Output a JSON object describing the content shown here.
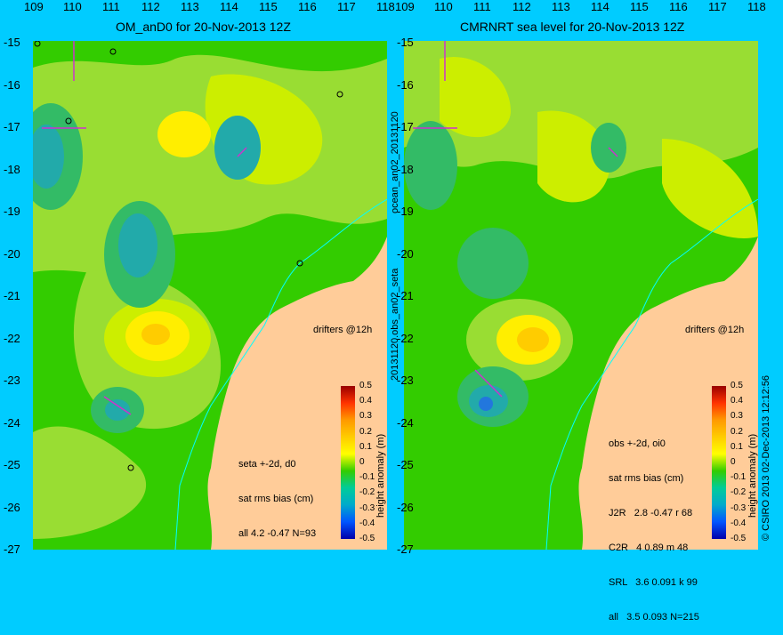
{
  "left_panel": {
    "title": "OM_anD0 for 20-Nov-2013 12Z",
    "drifters_label": "drifters @12h",
    "stats": [
      "seta +-2d, d0",
      "sat rms bias (cm)",
      "all 4.2 -0.47 N=93"
    ],
    "colorbar_label": "height anomaly (m)",
    "side_label": "ocean_an02_20131120"
  },
  "right_panel": {
    "title": "CMRNRT sea level  for 20-Nov-2013 12Z",
    "drifters_label": "drifters @12h",
    "stats": [
      "obs +-2d, oi0",
      "sat rms bias (cm)",
      "J2R   2.8 -0.47 r 68",
      "C2R   4 0.89 m 48",
      "SRL   3.6 0.091 k 99",
      "all   3.5 0.093 N=215"
    ],
    "colorbar_label": "height anomaly (m)",
    "side_label": "20131120.obs_an02_seta"
  },
  "copyright": "© CSIRO 2013  02-Dec-2013 12:12:56",
  "y_ticks": [
    "-15",
    "-16",
    "-17",
    "-18",
    "-19",
    "-20",
    "-21",
    "-22",
    "-23",
    "-24",
    "-25",
    "-26",
    "-27"
  ],
  "x_ticks": [
    "109",
    "110",
    "111",
    "112",
    "113",
    "114",
    "115",
    "116",
    "117",
    "118"
  ],
  "colorbar_ticks": [
    "0.5",
    "0.4",
    "0.3",
    "0.2",
    "0.1",
    "0",
    "-0.1",
    "-0.2",
    "-0.3",
    "-0.4",
    "-0.5"
  ],
  "colors": {
    "background": "#00ccff",
    "land": "#ffcc99",
    "sea_base": "#33cc00",
    "positive": "#ffcc00",
    "negative": "#00aaaa",
    "drifter": "#cc33cc"
  }
}
